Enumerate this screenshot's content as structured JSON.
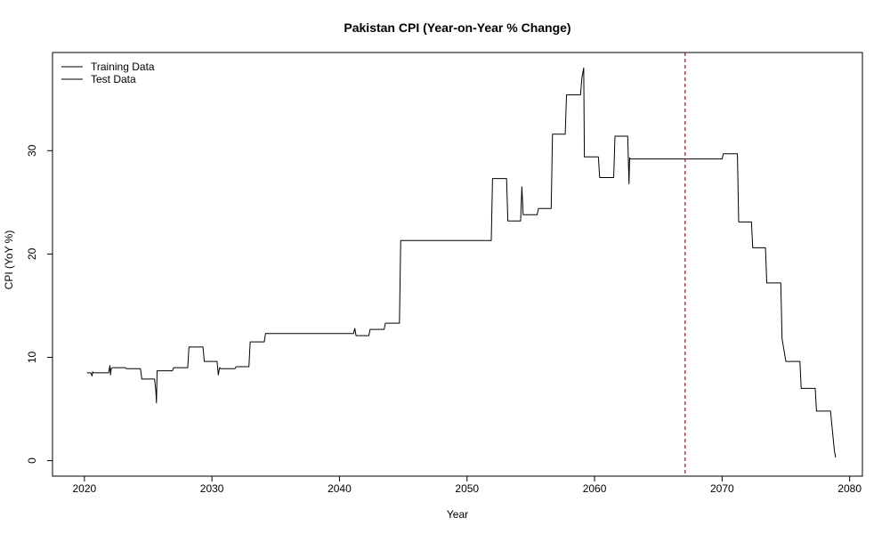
{
  "chart_data": {
    "type": "line",
    "title": "Pakistan CPI (Year-on-Year % Change)",
    "xlabel": "Year",
    "ylabel": "CPI (YoY %)",
    "xlim": [
      2017.5,
      2081.0
    ],
    "ylim": [
      -1.5,
      39.5
    ],
    "x_ticks": [
      2020,
      2030,
      2040,
      2050,
      2060,
      2070,
      2080
    ],
    "y_ticks": [
      0,
      10,
      20,
      30
    ],
    "grid": false,
    "legend_position": "top-left",
    "legend": [
      "Training Data",
      "Test Data"
    ],
    "split_year": 2067.1,
    "split_line_color": "#cc0000",
    "series": [
      {
        "name": "Training Data",
        "color": "#000000",
        "x": [
          2020.2,
          2020.5,
          2020.6,
          2020.65,
          2020.7,
          2021.0,
          2021.9,
          2022.0,
          2022.05,
          2022.1,
          2022.2,
          2022.4,
          2023.2,
          2023.3,
          2024.4,
          2024.5,
          2025.5,
          2025.6,
          2025.65,
          2025.7,
          2026.9,
          2027.0,
          2028.1,
          2028.2,
          2029.3,
          2029.4,
          2030.4,
          2030.5,
          2030.6,
          2030.7,
          2031.8,
          2031.9,
          2032.9,
          2033.0,
          2034.1,
          2034.2,
          2041.1,
          2041.2,
          2041.3,
          2042.3,
          2042.4,
          2043.5,
          2043.6,
          2044.7,
          2044.8,
          2045.5,
          2051.9,
          2052.0,
          2053.1,
          2053.2,
          2054.2,
          2054.3,
          2054.35,
          2054.4,
          2055.5,
          2055.6,
          2056.6,
          2056.7,
          2057.7,
          2057.8,
          2058.9,
          2059.0,
          2059.15,
          2059.2,
          2059.3,
          2060.3,
          2060.4,
          2061.5,
          2061.6,
          2062.6,
          2062.7,
          2062.75,
          2062.8,
          2063.0,
          2067.1
        ],
        "values": [
          8.5,
          8.5,
          8.2,
          8.6,
          8.5,
          8.5,
          8.5,
          9.2,
          8.3,
          8.9,
          9.0,
          9.0,
          9.0,
          8.9,
          8.9,
          7.9,
          7.9,
          6.8,
          5.6,
          8.7,
          8.7,
          9.0,
          9.0,
          11.0,
          11.0,
          9.6,
          9.6,
          8.3,
          9.0,
          8.9,
          8.9,
          9.1,
          9.1,
          11.5,
          11.5,
          12.3,
          12.3,
          12.8,
          12.1,
          12.1,
          12.7,
          12.7,
          13.3,
          13.3,
          21.3,
          21.3,
          21.3,
          27.3,
          27.3,
          23.2,
          23.2,
          26.5,
          25.2,
          23.8,
          23.8,
          24.4,
          24.4,
          31.6,
          31.6,
          35.4,
          35.4,
          37.0,
          38.0,
          29.4,
          29.4,
          29.4,
          27.4,
          27.4,
          31.4,
          31.4,
          26.8,
          29.3,
          29.2,
          29.2,
          29.2
        ]
      },
      {
        "name": "Test Data",
        "color": "#000000",
        "x": [
          2067.1,
          2070.0,
          2070.1,
          2071.2,
          2071.3,
          2072.3,
          2072.4,
          2073.4,
          2073.5,
          2074.6,
          2074.7,
          2075.0,
          2075.1,
          2076.1,
          2076.2,
          2077.3,
          2077.4,
          2078.5,
          2078.6,
          2078.8,
          2078.9
        ],
        "values": [
          29.2,
          29.2,
          29.7,
          29.7,
          23.1,
          23.1,
          20.6,
          20.6,
          17.2,
          17.2,
          11.8,
          9.6,
          9.6,
          9.6,
          7.0,
          7.0,
          4.8,
          4.8,
          3.5,
          1.0,
          0.3
        ]
      }
    ]
  }
}
